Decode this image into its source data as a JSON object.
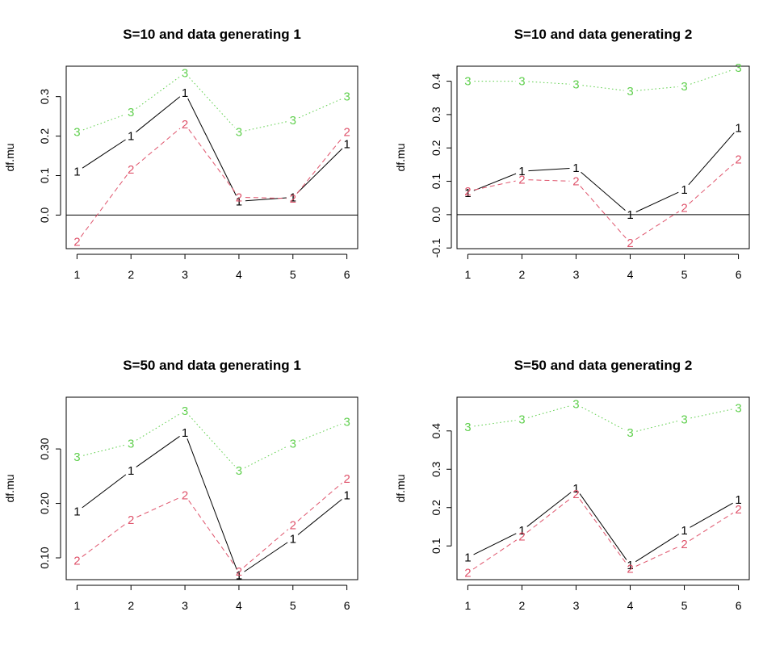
{
  "chart_data": [
    {
      "type": "line",
      "title": "S=10 and data generating 1",
      "xlabel": "",
      "ylabel": "df.mu",
      "x": [
        1,
        2,
        3,
        4,
        5,
        6
      ],
      "xlim": [
        0.8,
        6.2
      ],
      "ylim": [
        -0.085,
        0.377
      ],
      "yticks": [
        0.0,
        0.1,
        0.2,
        0.3
      ],
      "ytick_labels": [
        "0.0",
        "0.1",
        "0.2",
        "0.3"
      ],
      "hline": 0,
      "series": [
        {
          "label": "1",
          "color": "#000000",
          "dash": "solid",
          "values": [
            0.11,
            0.2,
            0.31,
            0.035,
            0.045,
            0.18
          ]
        },
        {
          "label": "2",
          "color": "#DF536B",
          "dash": "dashed",
          "values": [
            -0.068,
            0.115,
            0.23,
            0.045,
            0.042,
            0.21
          ]
        },
        {
          "label": "3",
          "color": "#61D04F",
          "dash": "dotted",
          "values": [
            0.21,
            0.26,
            0.36,
            0.21,
            0.24,
            0.3
          ]
        }
      ]
    },
    {
      "type": "line",
      "title": "S=10 and data generating 2",
      "xlabel": "",
      "ylabel": "df.mu",
      "x": [
        1,
        2,
        3,
        4,
        5,
        6
      ],
      "xlim": [
        0.8,
        6.2
      ],
      "ylim": [
        -0.102,
        0.445
      ],
      "yticks": [
        -0.1,
        0.0,
        0.1,
        0.2,
        0.3,
        0.4
      ],
      "ytick_labels": [
        "-0.1",
        "0.0",
        "0.1",
        "0.2",
        "0.3",
        "0.4"
      ],
      "hline": 0,
      "series": [
        {
          "label": "1",
          "color": "#000000",
          "dash": "solid",
          "values": [
            0.065,
            0.13,
            0.14,
            0.0,
            0.075,
            0.26
          ]
        },
        {
          "label": "2",
          "color": "#DF536B",
          "dash": "dashed",
          "values": [
            0.07,
            0.105,
            0.1,
            -0.085,
            0.02,
            0.165
          ]
        },
        {
          "label": "3",
          "color": "#61D04F",
          "dash": "dotted",
          "values": [
            0.4,
            0.4,
            0.39,
            0.37,
            0.385,
            0.44
          ]
        }
      ]
    },
    {
      "type": "line",
      "title": "S=50 and data generating 1",
      "xlabel": "",
      "ylabel": "df.mu",
      "x": [
        1,
        2,
        3,
        4,
        5,
        6
      ],
      "xlim": [
        0.8,
        6.2
      ],
      "ylim": [
        0.06,
        0.395
      ],
      "yticks": [
        0.1,
        0.2,
        0.3
      ],
      "ytick_labels": [
        "0.10",
        "0.20",
        "0.30"
      ],
      "hline": null,
      "series": [
        {
          "label": "1",
          "color": "#000000",
          "dash": "solid",
          "values": [
            0.185,
            0.26,
            0.33,
            0.068,
            0.135,
            0.215
          ]
        },
        {
          "label": "2",
          "color": "#DF536B",
          "dash": "dashed",
          "values": [
            0.095,
            0.17,
            0.215,
            0.075,
            0.16,
            0.245
          ]
        },
        {
          "label": "3",
          "color": "#61D04F",
          "dash": "dotted",
          "values": [
            0.285,
            0.31,
            0.37,
            0.26,
            0.31,
            0.35
          ]
        }
      ]
    },
    {
      "type": "line",
      "title": "S=50 and data generating 2",
      "xlabel": "",
      "ylabel": "df.mu",
      "x": [
        1,
        2,
        3,
        4,
        5,
        6
      ],
      "xlim": [
        0.8,
        6.2
      ],
      "ylim": [
        0.012,
        0.488
      ],
      "yticks": [
        0.1,
        0.2,
        0.3,
        0.4
      ],
      "ytick_labels": [
        "0.1",
        "0.2",
        "0.3",
        "0.4"
      ],
      "hline": null,
      "series": [
        {
          "label": "1",
          "color": "#000000",
          "dash": "solid",
          "values": [
            0.07,
            0.14,
            0.25,
            0.05,
            0.14,
            0.22
          ]
        },
        {
          "label": "2",
          "color": "#DF536B",
          "dash": "dashed",
          "values": [
            0.03,
            0.125,
            0.235,
            0.04,
            0.105,
            0.195
          ]
        },
        {
          "label": "3",
          "color": "#61D04F",
          "dash": "dotted",
          "values": [
            0.41,
            0.43,
            0.47,
            0.395,
            0.43,
            0.46
          ]
        }
      ]
    }
  ]
}
